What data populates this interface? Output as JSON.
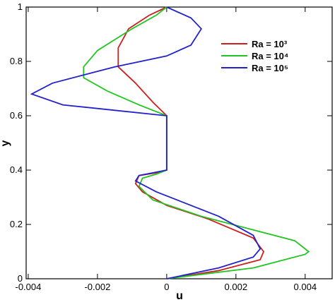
{
  "chart_data": {
    "type": "line",
    "xlabel": "u",
    "ylabel": "y",
    "xlim": [
      -0.00406,
      0.00478
    ],
    "ylim": [
      0,
      1
    ],
    "xticks": [
      -0.004,
      -0.002,
      0,
      0.002,
      0.004
    ],
    "yticks": [
      0,
      0.2,
      0.4,
      0.6,
      0.8,
      1
    ],
    "grid": false,
    "legend": "upper right",
    "series": [
      {
        "name": "Ra = 10³",
        "color": "#cc1f1f",
        "x": [
          0,
          0.0015,
          0.0027,
          0.0028,
          0.0025,
          0.0012,
          0,
          -0.0007,
          -0.0009,
          -0.0008,
          -0.0003,
          0,
          0,
          -0.0004,
          -0.0009,
          -0.0014,
          -0.0014,
          -0.0011,
          -0.0005,
          0
        ],
        "values": [
          0,
          0.03,
          0.07,
          0.1,
          0.15,
          0.22,
          0.27,
          0.32,
          0.35,
          0.38,
          0.39,
          0.4,
          0.6,
          0.65,
          0.72,
          0.78,
          0.85,
          0.92,
          0.97,
          1
        ]
      },
      {
        "name": "Ra = 10⁴",
        "color": "#22c422",
        "x": [
          0,
          0.0025,
          0.004,
          0.0041,
          0.0037,
          0.0025,
          0.001,
          -0.0004,
          -0.0008,
          -0.0007,
          -0.0003,
          0,
          0,
          -0.0008,
          -0.0017,
          -0.0024,
          -0.0024,
          -0.002,
          -0.001,
          -0.0003,
          0
        ],
        "values": [
          0,
          0.04,
          0.09,
          0.1,
          0.14,
          0.18,
          0.23,
          0.29,
          0.34,
          0.37,
          0.385,
          0.4,
          0.6,
          0.64,
          0.69,
          0.74,
          0.78,
          0.84,
          0.92,
          0.97,
          1
        ]
      },
      {
        "name": "Ra = 10⁵",
        "color": "#2222cc",
        "x": [
          0,
          0.0015,
          0.0025,
          0.0027,
          0.0025,
          0.0015,
          0.0005,
          -0.0003,
          -0.0009,
          -0.0008,
          -0.0004,
          0,
          0,
          -0.0015,
          -0.003,
          -0.0039,
          -0.0033,
          -0.0015,
          0,
          0.0007,
          0.001,
          0.0007,
          0
        ],
        "values": [
          0,
          0.04,
          0.08,
          0.11,
          0.16,
          0.23,
          0.28,
          0.32,
          0.36,
          0.38,
          0.39,
          0.4,
          0.6,
          0.62,
          0.64,
          0.68,
          0.72,
          0.78,
          0.82,
          0.86,
          0.92,
          0.96,
          1
        ]
      }
    ]
  }
}
